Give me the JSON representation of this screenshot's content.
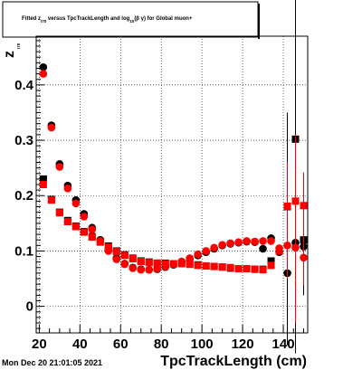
{
  "chart_data": {
    "type": "scatter",
    "title": {
      "parts": [
        {
          "text": "Fitted  z",
          "sub": false
        },
        {
          "text": "I70",
          "sub": true
        },
        {
          "text": "  versus TpcTrackLength and log",
          "sub": false
        },
        {
          "text": "10",
          "sub": true
        },
        {
          "text": "(β γ) for Global muon+",
          "sub": false
        }
      ]
    },
    "xlabel": "TpcTrackLength (cm)",
    "ylabel_main": "z",
    "ylabel_sub": "I70",
    "xlim": [
      18.5,
      152
    ],
    "ylim": [
      -0.048,
      0.488
    ],
    "xticks": [
      20,
      40,
      60,
      80,
      100,
      120,
      140
    ],
    "yticks": [
      0,
      0.1,
      0.2,
      0.3,
      0.4
    ],
    "ytick_labels": [
      "0",
      "0.1",
      "0.2",
      "0.3",
      "0.4"
    ],
    "grid": true,
    "timestamp": "Mon Dec 20 21:01:05 2021",
    "series": [
      {
        "marker": "square",
        "color": "#000000",
        "x": [
          22,
          26,
          30,
          34,
          38,
          42,
          46,
          50,
          54,
          58,
          62,
          66,
          70,
          74,
          78,
          82,
          86,
          90,
          94,
          98,
          102,
          106,
          110,
          114,
          118,
          122,
          126,
          130,
          134,
          138,
          142,
          146,
          150
        ],
        "y": [
          0.23,
          0.193,
          0.17,
          0.155,
          0.145,
          0.135,
          0.126,
          0.117,
          0.109,
          0.1,
          0.093,
          0.087,
          0.082,
          0.08,
          0.078,
          0.078,
          0.077,
          0.078,
          0.076,
          0.075,
          0.073,
          0.072,
          0.071,
          0.069,
          0.068,
          0.068,
          0.067,
          0.067,
          0.082,
          0.1,
          0.18,
          0.302,
          0.12
        ],
        "yerr": [
          0,
          0,
          0,
          0,
          0,
          0,
          0,
          0,
          0,
          0,
          0,
          0,
          0,
          0,
          0,
          0,
          0,
          0,
          0,
          0,
          0,
          0,
          0,
          0,
          0,
          0,
          0,
          0,
          0,
          0,
          0,
          0,
          0
        ],
        "yerr_hi": [
          0,
          0,
          0,
          0,
          0,
          0,
          0,
          0,
          0,
          0,
          0,
          0,
          0,
          0,
          0,
          0,
          0,
          0,
          0,
          0,
          0,
          0,
          0,
          0,
          0,
          0,
          0,
          0,
          0,
          0,
          0.17,
          0.42,
          0.07
        ],
        "yerr_lo": [
          0,
          0,
          0,
          0,
          0,
          0,
          0,
          0,
          0,
          0,
          0,
          0,
          0,
          0,
          0,
          0,
          0,
          0,
          0,
          0,
          0,
          0,
          0,
          0,
          0,
          0,
          0,
          0,
          0,
          0,
          0.25,
          0.3,
          0.1
        ]
      },
      {
        "marker": "circle",
        "color": "#000000",
        "x": [
          22,
          26,
          30,
          34,
          38,
          42,
          46,
          50,
          54,
          58,
          62,
          66,
          70,
          74,
          78,
          82,
          86,
          90,
          94,
          98,
          102,
          106,
          110,
          114,
          118,
          122,
          126,
          130,
          134,
          138,
          142,
          146,
          150
        ],
        "y": [
          0.432,
          0.327,
          0.257,
          0.218,
          0.192,
          0.167,
          0.142,
          0.12,
          0.102,
          0.087,
          0.077,
          0.07,
          0.067,
          0.066,
          0.067,
          0.071,
          0.075,
          0.08,
          0.085,
          0.092,
          0.098,
          0.104,
          0.11,
          0.113,
          0.115,
          0.117,
          0.116,
          0.104,
          0.123,
          0.098,
          0.06,
          0.115,
          0.108
        ],
        "yerr_hi": [
          0,
          0,
          0,
          0,
          0,
          0,
          0,
          0,
          0,
          0,
          0,
          0,
          0,
          0,
          0,
          0,
          0,
          0,
          0,
          0,
          0,
          0,
          0,
          0,
          0,
          0,
          0,
          0,
          0,
          0,
          0.1,
          0.06,
          0.05
        ],
        "yerr_lo": [
          0,
          0,
          0,
          0,
          0,
          0,
          0,
          0,
          0,
          0,
          0,
          0,
          0,
          0,
          0,
          0,
          0,
          0,
          0,
          0,
          0,
          0,
          0,
          0,
          0,
          0,
          0,
          0,
          0,
          0,
          0.12,
          0.2,
          0.06
        ]
      },
      {
        "marker": "square",
        "color": "#ff0000",
        "x": [
          22,
          26,
          30,
          34,
          38,
          42,
          46,
          50,
          54,
          58,
          62,
          66,
          70,
          74,
          78,
          82,
          86,
          90,
          94,
          98,
          102,
          106,
          110,
          114,
          118,
          122,
          126,
          130,
          134,
          138,
          142,
          146,
          150
        ],
        "y": [
          0.22,
          0.192,
          0.169,
          0.153,
          0.144,
          0.134,
          0.125,
          0.116,
          0.107,
          0.099,
          0.092,
          0.086,
          0.081,
          0.079,
          0.078,
          0.077,
          0.077,
          0.077,
          0.076,
          0.074,
          0.073,
          0.072,
          0.071,
          0.07,
          0.068,
          0.068,
          0.067,
          0.066,
          0.074,
          0.1,
          0.181,
          0.19,
          0.182
        ],
        "yerr_hi": [
          0,
          0,
          0,
          0,
          0,
          0,
          0,
          0,
          0,
          0,
          0,
          0,
          0,
          0,
          0,
          0,
          0,
          0,
          0,
          0,
          0,
          0,
          0,
          0,
          0,
          0,
          0,
          0,
          0,
          0,
          0.08,
          0.12,
          0.06
        ],
        "yerr_lo": [
          0,
          0,
          0,
          0,
          0,
          0,
          0,
          0,
          0,
          0,
          0,
          0,
          0,
          0,
          0,
          0,
          0,
          0,
          0,
          0,
          0,
          0,
          0,
          0,
          0,
          0,
          0,
          0,
          0,
          0,
          0.1,
          0.22,
          0.12
        ]
      },
      {
        "marker": "circle",
        "color": "#ff0000",
        "x": [
          22,
          26,
          30,
          34,
          38,
          42,
          46,
          50,
          54,
          58,
          62,
          66,
          70,
          74,
          78,
          82,
          86,
          90,
          94,
          98,
          102,
          106,
          110,
          114,
          118,
          122,
          126,
          130,
          134,
          138,
          142,
          146,
          150
        ],
        "y": [
          0.42,
          0.323,
          0.252,
          0.213,
          0.186,
          0.162,
          0.139,
          0.118,
          0.1,
          0.085,
          0.076,
          0.069,
          0.066,
          0.066,
          0.068,
          0.072,
          0.076,
          0.081,
          0.087,
          0.094,
          0.1,
          0.106,
          0.111,
          0.114,
          0.116,
          0.118,
          0.117,
          0.118,
          0.118,
          0.105,
          0.11,
          0.106,
          0.088
        ],
        "yerr_hi": [
          0,
          0,
          0,
          0,
          0,
          0,
          0,
          0,
          0,
          0,
          0,
          0,
          0,
          0,
          0,
          0,
          0,
          0,
          0,
          0,
          0,
          0,
          0,
          0,
          0,
          0,
          0,
          0,
          0,
          0,
          0.05,
          0.1,
          0.04
        ],
        "yerr_lo": [
          0,
          0,
          0,
          0,
          0,
          0,
          0,
          0,
          0,
          0,
          0,
          0,
          0,
          0,
          0,
          0,
          0,
          0,
          0,
          0,
          0,
          0,
          0,
          0,
          0,
          0,
          0,
          0,
          0,
          0,
          0.06,
          0.13,
          0.05
        ]
      }
    ]
  }
}
